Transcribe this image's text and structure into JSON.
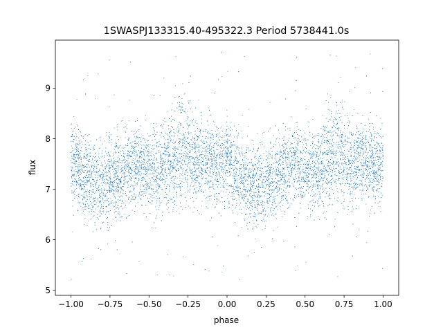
{
  "chart_data": {
    "type": "scatter",
    "title": "1SWASPJ133315.40-495322.3 Period 5738441.0s",
    "xlabel": "phase",
    "ylabel": "flux",
    "xlim": [
      -1.1,
      1.1
    ],
    "ylim": [
      4.9,
      9.95
    ],
    "xticks": [
      {
        "value": -1.0,
        "label": "−1.00"
      },
      {
        "value": -0.75,
        "label": "−0.75"
      },
      {
        "value": -0.5,
        "label": "−0.50"
      },
      {
        "value": -0.25,
        "label": "−0.25"
      },
      {
        "value": 0.0,
        "label": "0.00"
      },
      {
        "value": 0.25,
        "label": "0.25"
      },
      {
        "value": 0.5,
        "label": "0.50"
      },
      {
        "value": 0.75,
        "label": "0.75"
      },
      {
        "value": 1.0,
        "label": "1.00"
      }
    ],
    "yticks": [
      {
        "value": 5,
        "label": "5"
      },
      {
        "value": 6,
        "label": "6"
      },
      {
        "value": 7,
        "label": "7"
      },
      {
        "value": 8,
        "label": "8"
      },
      {
        "value": 9,
        "label": "9"
      }
    ],
    "grid": false,
    "marker_color": "#1f77b4",
    "phase_range": [
      -1.0,
      1.0
    ],
    "series": [
      {
        "x": [
          -1.0,
          -0.95,
          -0.9,
          -0.85,
          -0.8,
          -0.75,
          -0.7,
          -0.65,
          -0.6,
          -0.55,
          -0.5,
          -0.45,
          -0.4,
          -0.35,
          -0.3,
          -0.25,
          -0.2,
          -0.15,
          -0.1,
          -0.05,
          0.0,
          0.05,
          0.1,
          0.15,
          0.2,
          0.25,
          0.3,
          0.35,
          0.4,
          0.45,
          0.5,
          0.55,
          0.6,
          0.65,
          0.7,
          0.75,
          0.8,
          0.85,
          0.9,
          0.95,
          1.0
        ],
        "y_center": [
          7.6,
          7.35,
          7.2,
          7.1,
          7.05,
          7.15,
          7.25,
          7.35,
          7.45,
          7.5,
          7.4,
          7.35,
          7.45,
          7.6,
          7.8,
          7.7,
          7.5,
          7.55,
          7.6,
          7.45,
          7.6,
          7.35,
          7.2,
          7.1,
          7.05,
          7.15,
          7.25,
          7.35,
          7.45,
          7.5,
          7.4,
          7.35,
          7.45,
          7.6,
          7.8,
          7.7,
          7.5,
          7.55,
          7.6,
          7.45,
          7.6
        ],
        "y_low": [
          6.7,
          6.6,
          6.4,
          6.3,
          6.3,
          6.4,
          6.5,
          6.6,
          6.7,
          6.7,
          6.6,
          6.5,
          6.6,
          6.7,
          6.9,
          6.8,
          6.7,
          6.8,
          6.8,
          6.7,
          6.7,
          6.6,
          6.4,
          6.3,
          6.3,
          6.4,
          6.5,
          6.6,
          6.7,
          6.7,
          6.6,
          6.5,
          6.6,
          6.7,
          6.9,
          6.8,
          6.7,
          6.8,
          6.8,
          6.7,
          6.7
        ],
        "y_high": [
          8.2,
          8.1,
          8.0,
          7.9,
          7.9,
          8.0,
          8.1,
          8.2,
          8.2,
          8.3,
          8.1,
          8.2,
          8.2,
          8.5,
          8.9,
          8.7,
          8.3,
          8.3,
          8.4,
          8.2,
          8.2,
          8.1,
          8.0,
          7.9,
          7.9,
          8.0,
          8.1,
          8.2,
          8.2,
          8.3,
          8.1,
          8.2,
          8.2,
          8.5,
          8.9,
          8.7,
          8.3,
          8.3,
          8.4,
          8.2,
          8.2
        ]
      }
    ]
  }
}
